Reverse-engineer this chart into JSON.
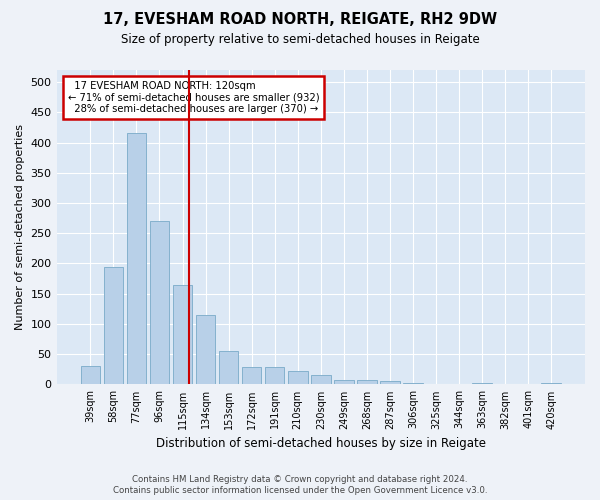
{
  "title": "17, EVESHAM ROAD NORTH, REIGATE, RH2 9DW",
  "subtitle": "Size of property relative to semi-detached houses in Reigate",
  "xlabel": "Distribution of semi-detached houses by size in Reigate",
  "ylabel": "Number of semi-detached properties",
  "categories": [
    "39sqm",
    "58sqm",
    "77sqm",
    "96sqm",
    "115sqm",
    "134sqm",
    "153sqm",
    "172sqm",
    "191sqm",
    "210sqm",
    "230sqm",
    "249sqm",
    "268sqm",
    "287sqm",
    "306sqm",
    "325sqm",
    "344sqm",
    "363sqm",
    "382sqm",
    "401sqm",
    "420sqm"
  ],
  "values": [
    30,
    195,
    415,
    270,
    165,
    115,
    55,
    28,
    28,
    22,
    15,
    8,
    8,
    5,
    3,
    0,
    0,
    3,
    0,
    0,
    3
  ],
  "bar_color": "#b8d0e8",
  "bar_edge_color": "#7aaac8",
  "property_label": "17 EVESHAM ROAD NORTH: 120sqm",
  "smaller_pct": "71% of semi-detached houses are smaller (932)",
  "larger_pct": "28% of semi-detached houses are larger (370)",
  "vline_color": "#cc0000",
  "annotation_box_color": "#cc0000",
  "background_color": "#eef2f8",
  "plot_bg_color": "#dce8f5",
  "grid_color": "#ffffff",
  "footnote1": "Contains HM Land Registry data © Crown copyright and database right 2024.",
  "footnote2": "Contains public sector information licensed under the Open Government Licence v3.0.",
  "ylim": [
    0,
    520
  ],
  "vline_x": 4.26
}
